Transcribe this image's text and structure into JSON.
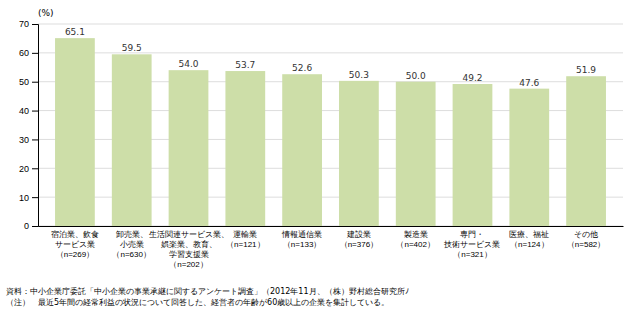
{
  "chart_data": {
    "type": "bar",
    "categories": [
      "宿泊業、飲食\nサービス業\n（n=269）",
      "卸売業、\n小売業\n（n=630）",
      "生活関連サービス業、\n娯楽業、教育、\n学習支援業\n（n=202）",
      "運輸業\n（n=121）",
      "情報通信業\n（n=133）",
      "建設業\n（n=376）",
      "製造業\n（n=402）",
      "専門・\n技術サービス業\n（n=321）",
      "医療、福祉\n（n=124）",
      "その他\n（n=582）"
    ],
    "values": [
      65.1,
      59.5,
      54.0,
      53.7,
      52.6,
      50.3,
      50.0,
      49.2,
      47.6,
      51.9
    ],
    "value_labels": [
      "65.1",
      "59.5",
      "54.0",
      "53.7",
      "52.6",
      "50.3",
      "50.0",
      "49.2",
      "47.6",
      "51.9"
    ],
    "data_labels": true,
    "color": "#cddea8",
    "ylabel": "(%)",
    "ylim": [
      0,
      70
    ],
    "yticks": [
      0,
      10,
      20,
      30,
      40,
      50,
      60,
      70
    ],
    "grid": true,
    "annotations": [
      "資料：中小企業庁委託「中小企業の事業承継に関するアンケート調査」（2012年11月、（株）野村総合研究所ﾉ",
      "（注）　最近5年間の経常利益の状況について回答した、経営者の年齢が60歳以上の企業を集計している。"
    ]
  }
}
